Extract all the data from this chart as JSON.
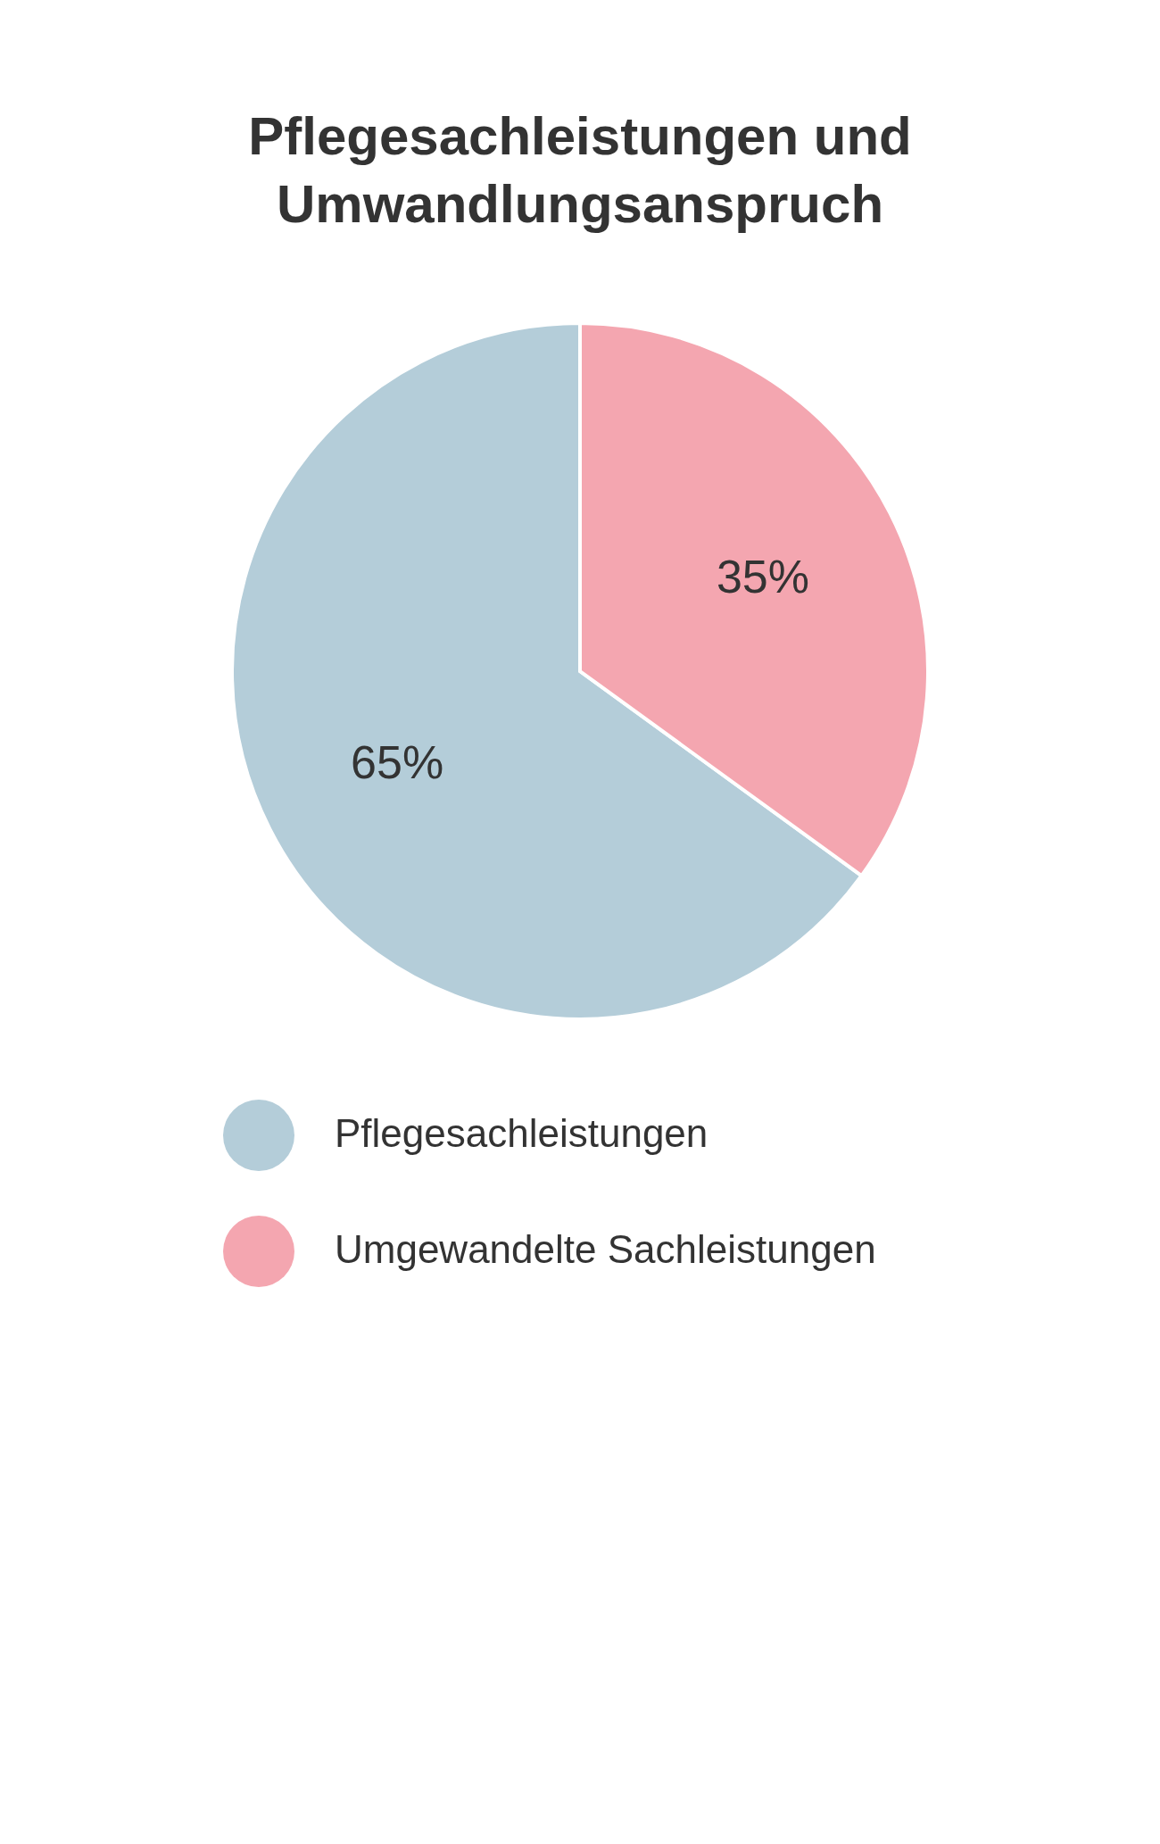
{
  "chart_data": {
    "type": "pie",
    "title": "Pflegesachleistungen und Umwandlungsanspruch",
    "categories": [
      "Pflegesachleistungen",
      "Umgewandelte Sachleistungen"
    ],
    "values": [
      65,
      35
    ],
    "colors": [
      "#b4cdd9",
      "#f4a6b0"
    ],
    "value_labels": [
      "65%",
      "35%"
    ],
    "legend": "bottom"
  }
}
